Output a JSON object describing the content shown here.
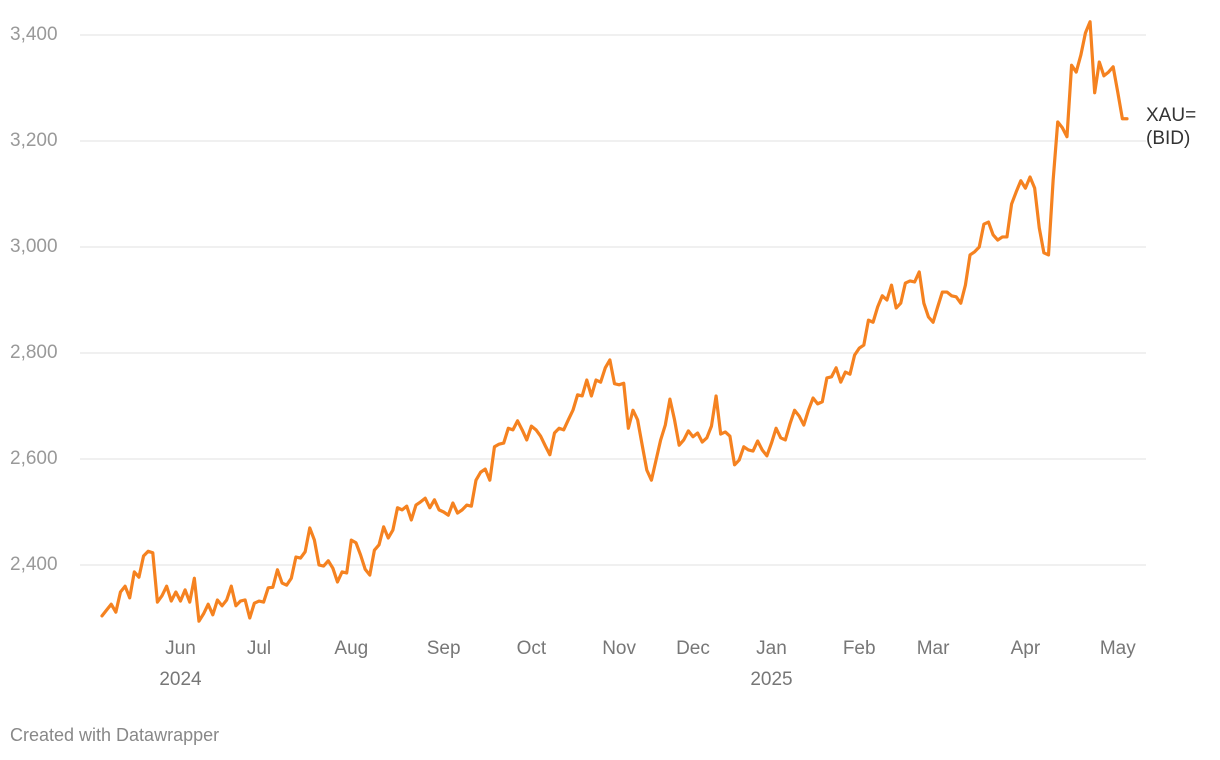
{
  "chart_data": {
    "type": "line",
    "categories": [
      null,
      null,
      null,
      null,
      null,
      null,
      null,
      null,
      null,
      null,
      null,
      null,
      null,
      null,
      null,
      null,
      null,
      "Jun",
      null,
      null,
      null,
      null,
      null,
      null,
      null,
      null,
      null,
      null,
      null,
      null,
      null,
      null,
      null,
      null,
      "Jul",
      null,
      null,
      null,
      null,
      null,
      null,
      null,
      null,
      null,
      null,
      null,
      null,
      null,
      null,
      null,
      null,
      null,
      null,
      null,
      "Aug",
      null,
      null,
      null,
      null,
      null,
      null,
      null,
      null,
      null,
      null,
      null,
      null,
      null,
      null,
      null,
      null,
      null,
      null,
      null,
      "Sep",
      null,
      null,
      null,
      null,
      null,
      null,
      null,
      null,
      null,
      null,
      null,
      null,
      null,
      null,
      null,
      null,
      null,
      null,
      "Oct",
      null,
      null,
      null,
      null,
      null,
      null,
      null,
      null,
      null,
      null,
      null,
      null,
      null,
      null,
      null,
      null,
      null,
      null,
      "Nov",
      null,
      null,
      null,
      null,
      null,
      null,
      null,
      null,
      null,
      null,
      null,
      null,
      null,
      null,
      null,
      "Dec",
      null,
      null,
      null,
      null,
      null,
      null,
      null,
      null,
      null,
      null,
      null,
      null,
      null,
      null,
      null,
      null,
      "Jan",
      null,
      null,
      null,
      null,
      null,
      null,
      null,
      null,
      null,
      null,
      null,
      null,
      null,
      null,
      null,
      null,
      null,
      null,
      "Feb",
      null,
      null,
      null,
      null,
      null,
      null,
      null,
      null,
      null,
      null,
      null,
      null,
      null,
      null,
      null,
      "Mar",
      null,
      null,
      null,
      null,
      null,
      null,
      null,
      null,
      null,
      null,
      null,
      null,
      null,
      null,
      null,
      null,
      null,
      null,
      null,
      "Apr",
      null,
      null,
      null,
      null,
      null,
      null,
      null,
      null,
      null,
      null,
      null,
      null,
      null,
      null,
      null,
      null,
      null,
      null,
      null,
      "May",
      null,
      null
    ],
    "year_labels": [
      {
        "category": "Jun",
        "label": "2024"
      },
      {
        "category": "Jan",
        "label": "2025"
      }
    ],
    "series": [
      {
        "name": "XAU= (BID)",
        "color": "#f58220",
        "values": [
          2304,
          2315,
          2326,
          2311,
          2349,
          2360,
          2338,
          2387,
          2377,
          2417,
          2426,
          2423,
          2330,
          2342,
          2360,
          2332,
          2349,
          2332,
          2353,
          2330,
          2375,
          2294,
          2308,
          2326,
          2306,
          2334,
          2323,
          2334,
          2360,
          2323,
          2332,
          2334,
          2300,
          2328,
          2332,
          2330,
          2357,
          2358,
          2391,
          2366,
          2362,
          2375,
          2415,
          2413,
          2425,
          2470,
          2447,
          2400,
          2398,
          2408,
          2394,
          2368,
          2387,
          2385,
          2447,
          2442,
          2419,
          2392,
          2381,
          2428,
          2438,
          2472,
          2451,
          2466,
          2508,
          2504,
          2511,
          2485,
          2513,
          2519,
          2526,
          2508,
          2523,
          2504,
          2500,
          2494,
          2517,
          2498,
          2504,
          2513,
          2511,
          2560,
          2575,
          2581,
          2560,
          2623,
          2628,
          2630,
          2658,
          2655,
          2672,
          2655,
          2636,
          2662,
          2655,
          2643,
          2625,
          2608,
          2649,
          2658,
          2655,
          2674,
          2692,
          2721,
          2719,
          2749,
          2719,
          2749,
          2745,
          2772,
          2787,
          2742,
          2740,
          2743,
          2658,
          2692,
          2674,
          2626,
          2579,
          2560,
          2598,
          2636,
          2664,
          2713,
          2674,
          2626,
          2636,
          2653,
          2642,
          2649,
          2632,
          2640,
          2662,
          2719,
          2647,
          2651,
          2643,
          2589,
          2598,
          2623,
          2617,
          2615,
          2634,
          2617,
          2606,
          2630,
          2658,
          2640,
          2636,
          2666,
          2692,
          2681,
          2664,
          2692,
          2715,
          2704,
          2708,
          2753,
          2755,
          2772,
          2745,
          2764,
          2760,
          2796,
          2809,
          2815,
          2862,
          2858,
          2887,
          2908,
          2900,
          2928,
          2885,
          2894,
          2932,
          2936,
          2934,
          2953,
          2894,
          2868,
          2858,
          2887,
          2915,
          2915,
          2908,
          2906,
          2894,
          2928,
          2985,
          2991,
          3000,
          3043,
          3047,
          3023,
          3013,
          3019,
          3019,
          3081,
          3104,
          3125,
          3111,
          3132,
          3111,
          3036,
          2989,
          2985,
          3126,
          3236,
          3225,
          3208,
          3343,
          3330,
          3362,
          3404,
          3425,
          3291,
          3349,
          3323,
          3330,
          3340,
          3292,
          3242,
          3242
        ]
      }
    ],
    "ylim": [
      2280,
      3430
    ],
    "yticks": [
      {
        "value": 2400,
        "label": "2,400"
      },
      {
        "value": 2600,
        "label": "2,600"
      },
      {
        "value": 2800,
        "label": "2,800"
      },
      {
        "value": 3000,
        "label": "3,000"
      },
      {
        "value": 3200,
        "label": "3,200"
      },
      {
        "value": 3400,
        "label": "3,400"
      }
    ],
    "grid": true,
    "credit": "Created with Datawrapper"
  }
}
